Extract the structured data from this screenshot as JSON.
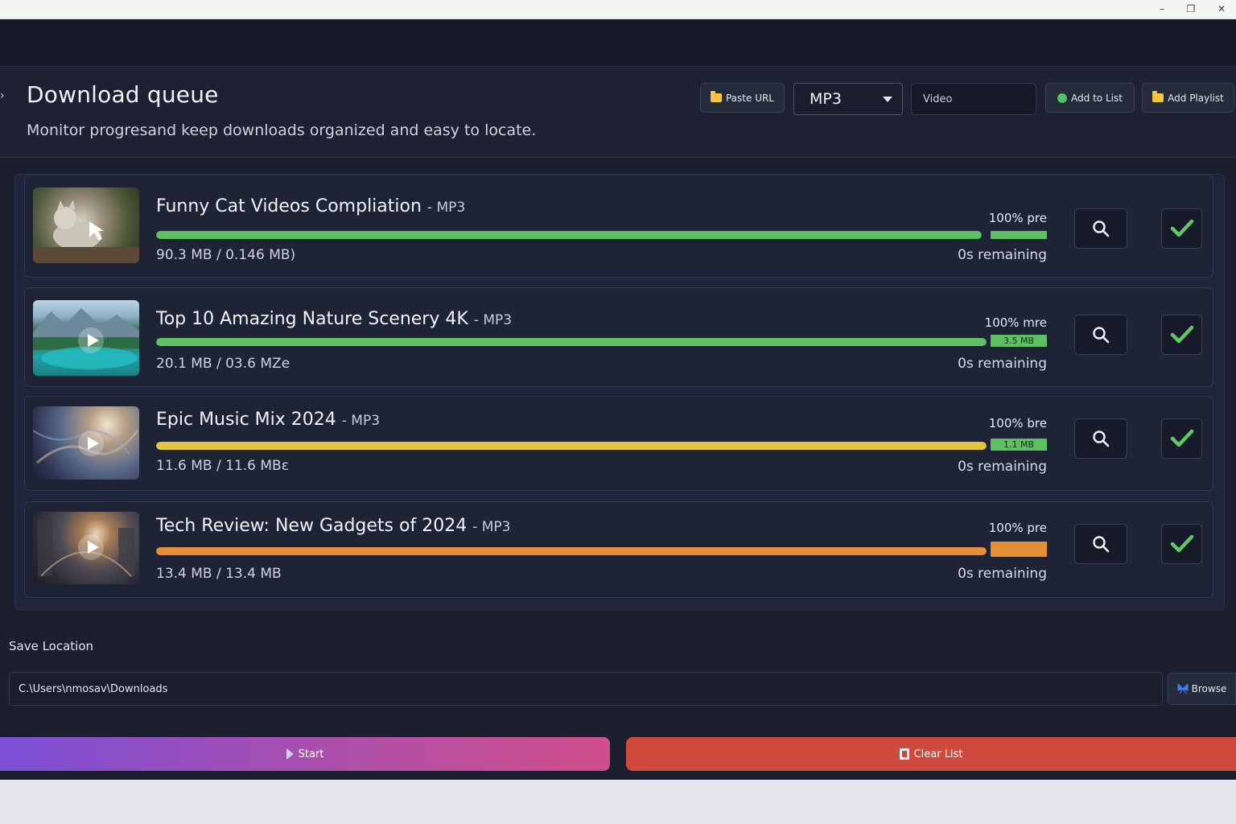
{
  "window": {
    "minimize": "–",
    "restore": "❐",
    "close": "✕"
  },
  "header": {
    "title": "Download queue",
    "subtitle": "Monitor progresand keep downloads organized and easy to locate."
  },
  "toolbar": {
    "paste_url": "Paste URL",
    "format_value": "MP3",
    "type_placeholder": "Video",
    "add_to_list": "Add to List",
    "add_playlist": "Add Playlist"
  },
  "queue": [
    {
      "title": "Funny Cat Videos Compliation",
      "format": "- MP3",
      "percent_text": "100% pre",
      "end_label": "",
      "sizes": "90.3 MB / 0.146 MB)",
      "remaining": "0s remaining",
      "progress": 1.0,
      "bar_color": "#5fbf63"
    },
    {
      "title": "Top 10 Amazing Nature Scenery 4K",
      "format": "- MP3",
      "percent_text": "100% mre",
      "end_label": "3.5 MB",
      "sizes": "20.1 MB / 03.6 MZe",
      "remaining": "0s remaining",
      "progress": 1.0,
      "bar_color": "#5fbf63"
    },
    {
      "title": "Epic Music Mix 2024",
      "format": "- MP3",
      "percent_text": "100% bre",
      "end_label": "1.1 MB",
      "sizes": "11.6 MB / 11.6 MBɛ",
      "remaining": "0s remaining",
      "progress": 1.0,
      "bar_color": "#e3c43e"
    },
    {
      "title": "Tech Review: New Gadgets of 2024",
      "format": "- MP3",
      "percent_text": "100% pre",
      "end_label": "",
      "sizes": "13.4 MB / 13.4 MB",
      "remaining": "0s remaining",
      "progress": 1.0,
      "bar_color": "#e58e35"
    }
  ],
  "colors": {
    "green_end_segment": "#5fbf63",
    "orange_end_segment": "#e38f36",
    "check": "#5fc96a"
  },
  "save": {
    "label": "Save Location",
    "path": "C.\\Users\\nmosav\\Downloads",
    "browse": "Browse"
  },
  "actions": {
    "start": "Start",
    "clear": "Clear List"
  }
}
